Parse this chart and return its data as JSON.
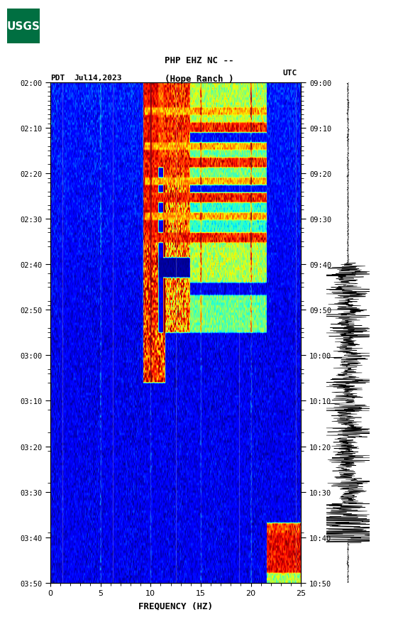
{
  "title_line1": "PHP EHZ NC --",
  "title_line2": "(Hope Ranch )",
  "left_label": "PDT",
  "date_label": "Jul14,2023",
  "right_label": "UTC",
  "freq_label": "FREQUENCY (HZ)",
  "freq_min": 0,
  "freq_max": 25,
  "freq_ticks": [
    0,
    5,
    10,
    15,
    20,
    25
  ],
  "time_labels_left": [
    "02:00",
    "02:10",
    "02:20",
    "02:30",
    "02:40",
    "02:50",
    "03:00",
    "03:10",
    "03:20",
    "03:30",
    "03:40",
    "03:50"
  ],
  "time_labels_right": [
    "09:00",
    "09:10",
    "09:20",
    "09:30",
    "09:40",
    "09:50",
    "10:00",
    "10:10",
    "10:20",
    "10:30",
    "10:40",
    "10:50"
  ],
  "n_times": 360,
  "n_freqs": 200,
  "usgs_green": "#006f41",
  "background_color": "#ffffff",
  "fig_width": 5.52,
  "fig_height": 8.92
}
